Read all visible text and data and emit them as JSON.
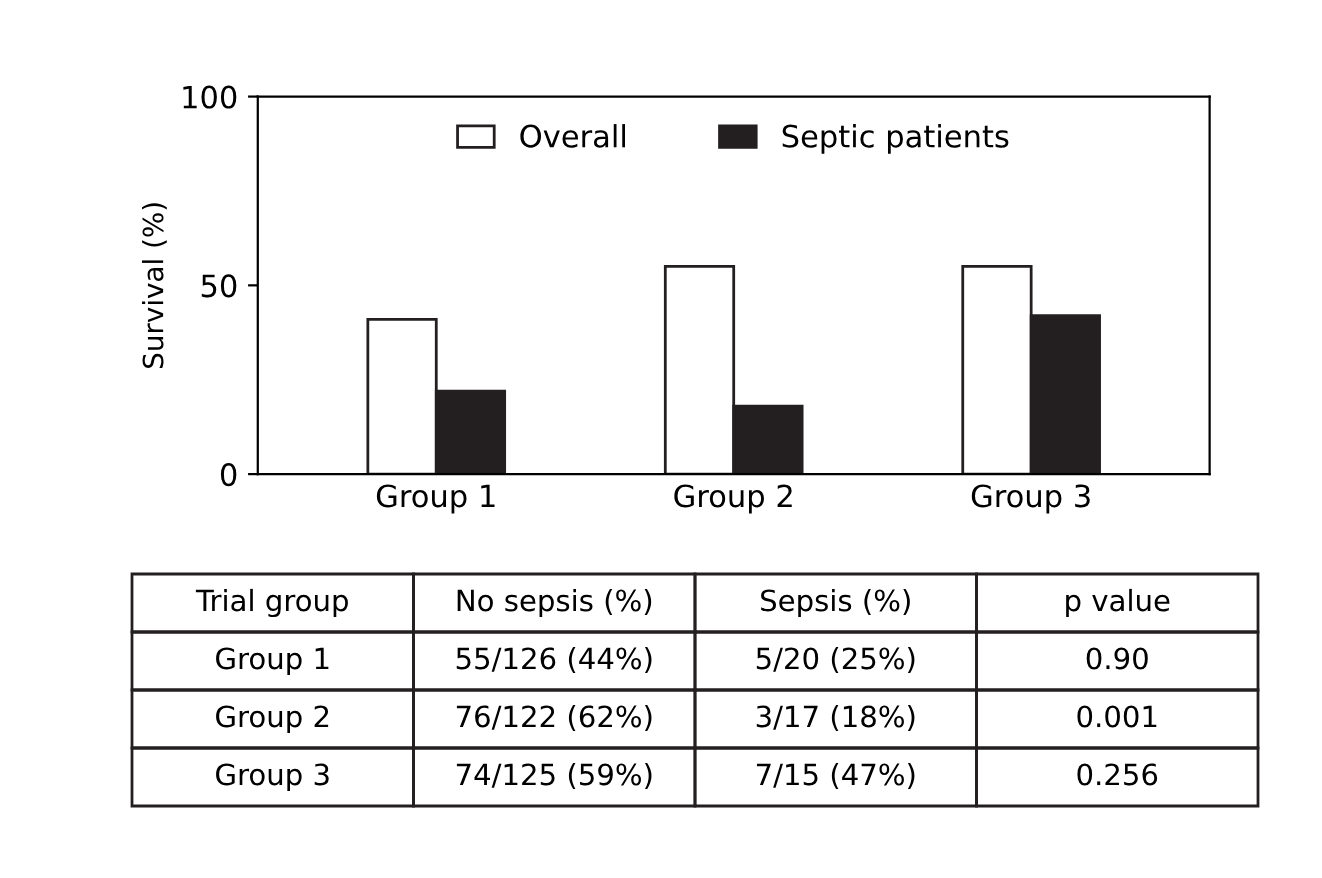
{
  "chart_data": {
    "type": "bar",
    "ylabel": "Survival (%)",
    "categories": [
      "Group 1",
      "Group 2",
      "Group 3"
    ],
    "series": [
      {
        "name": "Overall",
        "color": "#ffffff",
        "values": [
          41,
          55,
          55
        ]
      },
      {
        "name": "Septic patients",
        "color": "#231f20",
        "values": [
          22,
          18,
          42
        ]
      }
    ],
    "ylim": [
      0,
      100
    ],
    "yticks": [
      0,
      50,
      100
    ],
    "grid": false,
    "legend": "top",
    "annotations": [
      "Trial group",
      "No sepsis (%)",
      "Sepsis (%)",
      "p value",
      "Group 1",
      "55/126 (44%)",
      "5/20 (25%)",
      "0.90",
      "Group 2",
      "76/122 (62%)",
      "3/17 (18%)",
      "0.001",
      "Group 3",
      "74/125 (59%)",
      "7/15 (47%)",
      "0.256"
    ]
  }
}
